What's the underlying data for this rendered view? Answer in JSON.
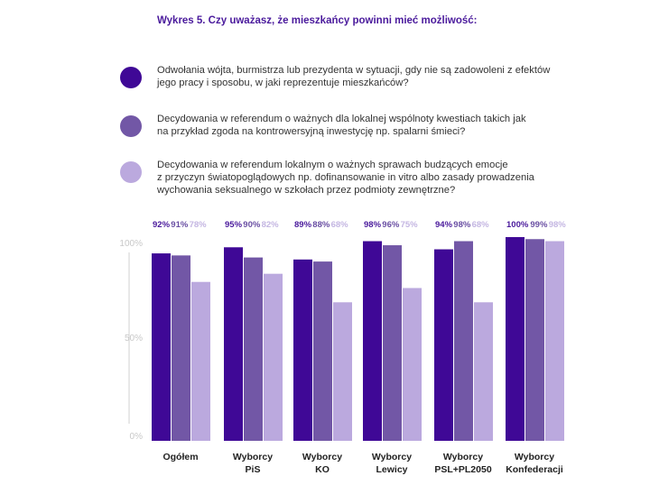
{
  "title": "Wykres 5. Czy uważasz, że mieszkańcy powinni mieć możliwość:",
  "colors": [
    "#3f0896",
    "#7257a6",
    "#bba9de"
  ],
  "legend": [
    {
      "lines": [
        "Odwołania wójta, burmistrza lub prezydenta w sytuacji, gdy nie są zadowoleni z efektów",
        "jego pracy i sposobu, w jaki reprezentuje mieszkańców?"
      ]
    },
    {
      "lines": [
        "Decydowania w referendum o ważnych dla lokalnej wspólnoty kwestiach takich jak",
        "na przykład zgoda na kontrowersyjną inwestycję np. spalarni śmieci?"
      ]
    },
    {
      "lines": [
        "Decydowania w referendum lokalnym o ważnych sprawach budzących emocje",
        "z przyczyn światopoglądowych np. dofinansowanie in vitro albo zasady prowadzenia",
        "wychowania seksualnego w szkołach przez podmioty zewnętrzne?"
      ]
    }
  ],
  "chart_data": {
    "type": "bar",
    "categories": [
      [
        "Ogółem"
      ],
      [
        "Wyborcy",
        "PiS"
      ],
      [
        "Wyborcy",
        "KO"
      ],
      [
        "Wyborcy",
        "Lewicy"
      ],
      [
        "Wyborcy",
        "PSL+PL2050"
      ],
      [
        "Wyborcy",
        "Konfederacji"
      ]
    ],
    "series": [
      {
        "values": [
          92,
          95,
          89,
          98,
          94,
          100
        ]
      },
      {
        "values": [
          91,
          90,
          88,
          96,
          98,
          99
        ]
      },
      {
        "values": [
          78,
          82,
          68,
          75,
          68,
          98
        ]
      }
    ],
    "y_ticks": [
      "100%",
      "50%",
      "0%"
    ],
    "ylim": [
      0,
      100
    ],
    "data_labels": [
      [
        "92%",
        "91%",
        "78%"
      ],
      [
        "95%",
        "90%",
        "82%"
      ],
      [
        "89%",
        "88%",
        "68%"
      ],
      [
        "98%",
        "96%",
        "75%"
      ],
      [
        "94%",
        "98%",
        "68%"
      ],
      [
        "100%",
        "99%",
        "98%"
      ]
    ]
  }
}
